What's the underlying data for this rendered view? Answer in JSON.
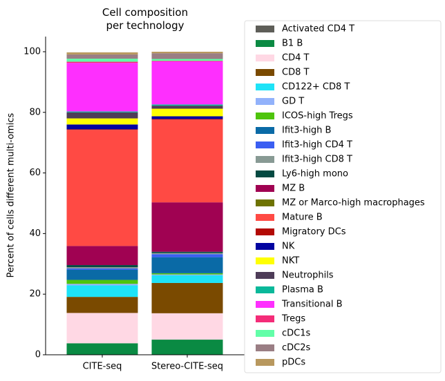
{
  "chart_data": {
    "type": "stacked_bar",
    "title": "Cell composition\nper technology",
    "ylabel": "Percent of cells different multi-omics",
    "categories": [
      "CITE-seq",
      "Stereo-CITE-seq"
    ],
    "ylim": [
      0,
      105
    ],
    "yticks": [
      0,
      20,
      40,
      60,
      80,
      100
    ],
    "legend": "outside-right",
    "series": [
      {
        "name": "Activated CD4 T",
        "color": "#5e5e58",
        "values": [
          0.1,
          0.1
        ]
      },
      {
        "name": "B1 B",
        "color": "#0a8a43",
        "values": [
          3.7,
          4.9
        ]
      },
      {
        "name": "CD4 T",
        "color": "#ffd8e4",
        "values": [
          10.0,
          8.7
        ]
      },
      {
        "name": "CD8 T",
        "color": "#7a4a00",
        "values": [
          5.3,
          10.0
        ]
      },
      {
        "name": "CD122+ CD8 T",
        "color": "#1ee3f7",
        "values": [
          3.8,
          2.5
        ]
      },
      {
        "name": "GD T",
        "color": "#92b2fb",
        "values": [
          0.5,
          0.3
        ]
      },
      {
        "name": "ICOS-high Tregs",
        "color": "#4ec40c",
        "values": [
          1.3,
          0.4
        ]
      },
      {
        "name": "Ifit3-high B",
        "color": "#0a6aa6",
        "values": [
          3.4,
          5.3
        ]
      },
      {
        "name": "Ifit3-high CD4 T",
        "color": "#3a5ef2",
        "values": [
          0.4,
          1.0
        ]
      },
      {
        "name": "Ifit3-high CD8 T",
        "color": "#889a94",
        "values": [
          0.4,
          0.4
        ]
      },
      {
        "name": "Ly6-high mono",
        "color": "#044a42",
        "values": [
          0.7,
          0.4
        ]
      },
      {
        "name": "MZ B",
        "color": "#a00252",
        "values": [
          6.3,
          16.3
        ]
      },
      {
        "name": "MZ or Marco-high macrophages",
        "color": "#6e7302",
        "values": [
          0.0,
          0.0
        ]
      },
      {
        "name": "Mature B",
        "color": "#ff4a44",
        "values": [
          38.3,
          27.3
        ]
      },
      {
        "name": "Migratory DCs",
        "color": "#b30a04",
        "values": [
          0.2,
          0.2
        ]
      },
      {
        "name": "NK",
        "color": "#0204a0",
        "values": [
          1.6,
          0.9
        ]
      },
      {
        "name": "NKT",
        "color": "#ffff02",
        "values": [
          2.0,
          2.5
        ]
      },
      {
        "name": "Neutrophils",
        "color": "#4e3c58",
        "values": [
          2.0,
          1.0
        ]
      },
      {
        "name": "Plasma B",
        "color": "#0ab89a",
        "values": [
          0.3,
          0.4
        ]
      },
      {
        "name": "Transitional B",
        "color": "#fe2ffe",
        "values": [
          16.0,
          14.2
        ]
      },
      {
        "name": "Tregs",
        "color": "#f42c78",
        "values": [
          0.4,
          0.2
        ]
      },
      {
        "name": "cDC1s",
        "color": "#62fea8",
        "values": [
          1.0,
          0.6
        ]
      },
      {
        "name": "cDC2s",
        "color": "#9a7e84",
        "values": [
          1.4,
          1.9
        ]
      },
      {
        "name": "pDCs",
        "color": "#b8985e",
        "values": [
          0.7,
          0.5
        ]
      }
    ]
  }
}
